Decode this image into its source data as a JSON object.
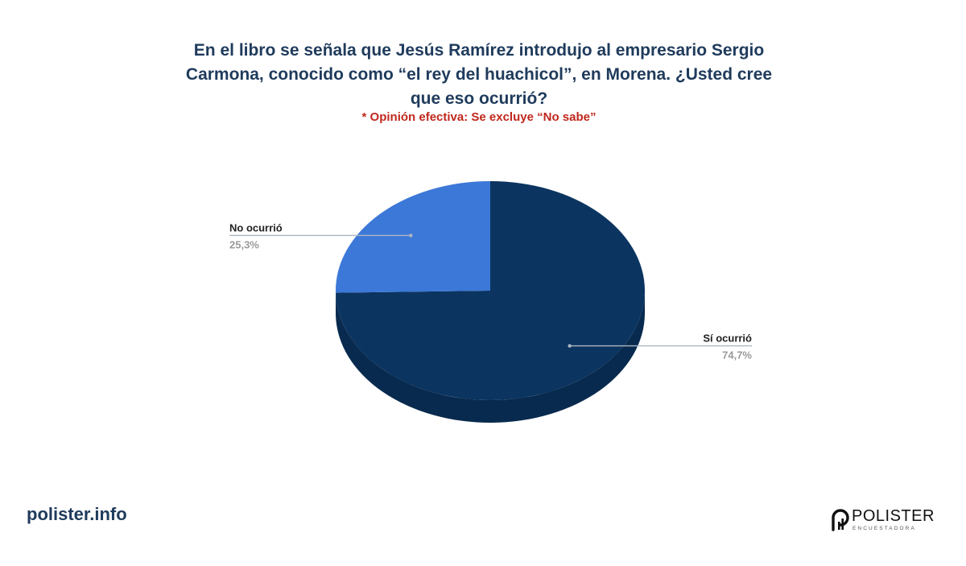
{
  "header": {
    "title_lines": [
      "En el libro se señala que Jesús Ramírez introdujo al empresario Sergio",
      "Carmona, conocido como “el rey del huachicol”, en Morena. ¿Usted cree",
      "que eso ocurrió?"
    ],
    "subtitle": "* Opinión efectiva: Se excluye “No sabe”"
  },
  "chart_data": {
    "type": "pie",
    "three_d": true,
    "slices": [
      {
        "label": "Sí ocurrió",
        "value": 74.7,
        "value_label": "74,7%",
        "color": "#0b3460",
        "side_color": "#082a4e"
      },
      {
        "label": "No ocurrió",
        "value": 25.3,
        "value_label": "25,3%",
        "color": "#3c78d8",
        "side_color": "#2f62b3"
      }
    ]
  },
  "footer": {
    "url": "polister.info",
    "brand": {
      "name": "POLISTER",
      "tagline": "ENCUESTADORA",
      "icon": "polister-logo-icon"
    }
  }
}
